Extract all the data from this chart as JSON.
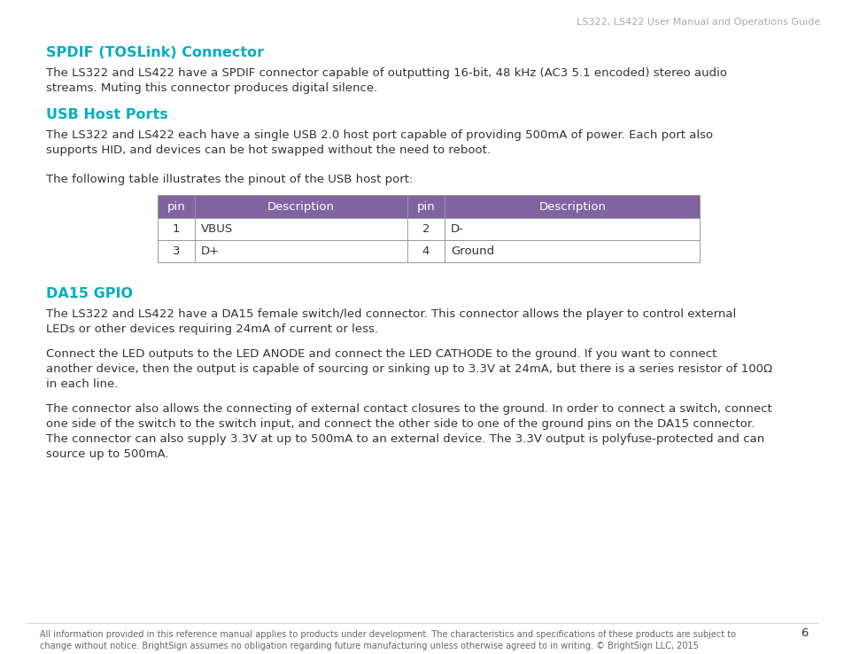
{
  "header_text": "LS322, LS422 User Manual and Operations Guide",
  "header_color": "#aaaaaa",
  "background_color": "#ffffff",
  "cyan_color": "#00AEBD",
  "purple_header_color": "#8064A2",
  "purple_text_color": "#ffffff",
  "table_border_color": "#999999",
  "table_text_color": "#333333",
  "body_text_color": "#333333",
  "footer_text_color": "#666666",
  "section1_title": "SPDIF (TOSLink) Connector",
  "section1_line1": "The LS322 and LS422 have a SPDIF connector capable of outputting 16-bit, 48 kHz (AC3 5.1 encoded) stereo audio",
  "section1_line2": "streams. Muting this connector produces digital silence.",
  "section2_title": "USB Host Ports",
  "section2_line1": "The LS322 and LS422 each have a single USB 2.0 host port capable of providing 500mA of power. Each port also",
  "section2_line2": "supports HID, and devices can be hot swapped without the need to reboot.",
  "table_intro": "The following table illustrates the pinout of the USB host port:",
  "table_headers": [
    "pin",
    "Description",
    "pin",
    "Description"
  ],
  "table_rows": [
    [
      "1",
      "VBUS",
      "2",
      "D-"
    ],
    [
      "3",
      "D+",
      "4",
      "Ground"
    ]
  ],
  "section3_title": "DA15 GPIO",
  "section3_b1_l1": "The LS322 and LS422 have a DA15 female switch/led connector. This connector allows the player to control external",
  "section3_b1_l2": "LEDs or other devices requiring 24mA of current or less.",
  "section3_b2_l1": "Connect the LED outputs to the LED ANODE and connect the LED CATHODE to the ground. If you want to connect",
  "section3_b2_l2": "another device, then the output is capable of sourcing or sinking up to 3.3V at 24mA, but there is a series resistor of 100Ω",
  "section3_b2_l3": "in each line.",
  "section3_b3_l1": "The connector also allows the connecting of external contact closures to the ground. In order to connect a switch, connect",
  "section3_b3_l2": "one side of the switch to the switch input, and connect the other side to one of the ground pins on the DA15 connector.",
  "section3_b3_l3": "The connector can also supply 3.3V at up to 500mA to an external device. The 3.3V output is polyfuse-protected and can",
  "section3_b3_l4": "source up to 500mA.",
  "page_number": "6",
  "footer_line1": "All information provided in this reference manual applies to products under development. The characteristics and specifications of these products are subject to",
  "footer_line2": "change without notice. BrightSign assumes no obligation regarding future manufacturing unless otherwise agreed to in writing. © BrightSign LLC, 2015"
}
